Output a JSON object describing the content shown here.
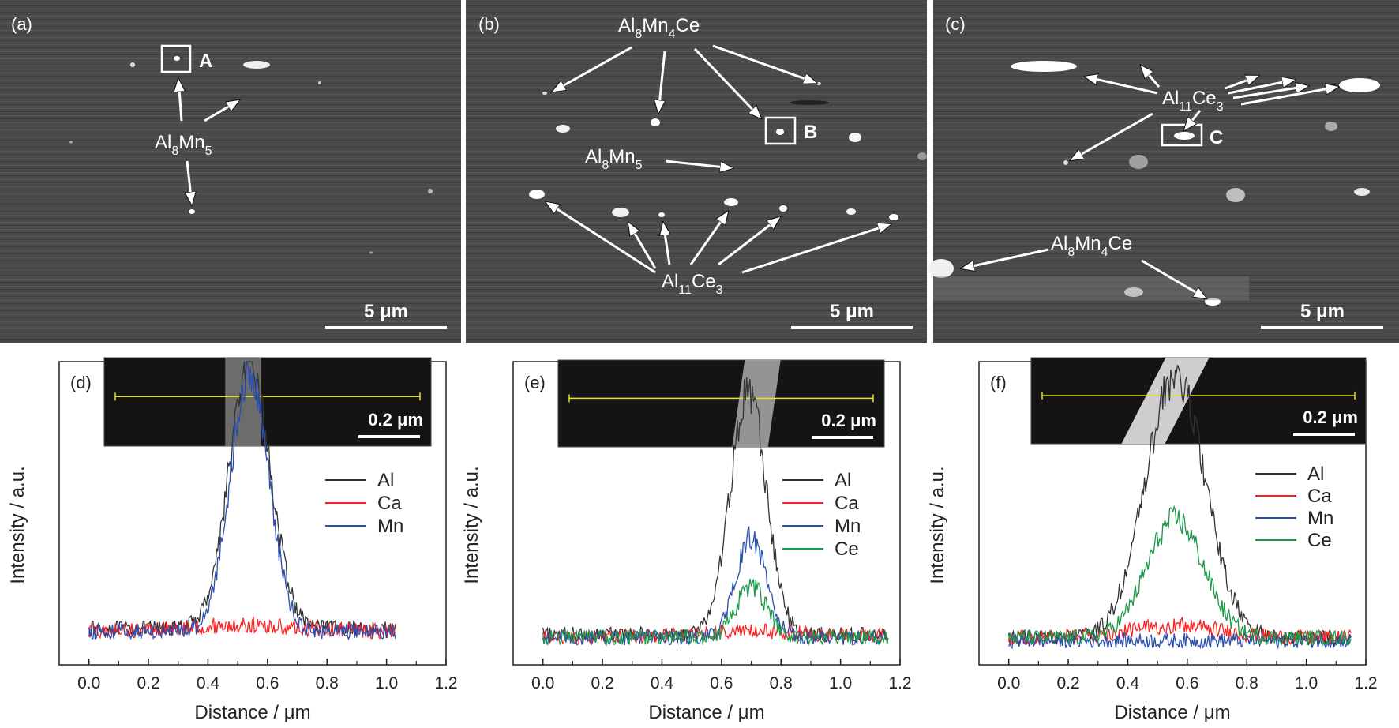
{
  "sem_panels": [
    {
      "tag": "(a)",
      "scale_label": "5 μm",
      "box_label": "A",
      "phase_labels": [
        {
          "main": "Al",
          "s1": "8",
          "mid": "Mn",
          "s2": "5",
          "tail": ""
        }
      ]
    },
    {
      "tag": "(b)",
      "scale_label": "5 μm",
      "box_label": "B",
      "phase_labels": [
        {
          "main": "Al",
          "s1": "8",
          "mid": "Mn",
          "s2": "4",
          "tail": "Ce"
        },
        {
          "main": "Al",
          "s1": "8",
          "mid": "Mn",
          "s2": "5",
          "tail": ""
        },
        {
          "main": "Al",
          "s1": "11",
          "mid": "Ce",
          "s2": "3",
          "tail": ""
        }
      ]
    },
    {
      "tag": "(c)",
      "scale_label": "5 μm",
      "box_label": "C",
      "phase_labels": [
        {
          "main": "Al",
          "s1": "11",
          "mid": "Ce",
          "s2": "3",
          "tail": ""
        },
        {
          "main": "Al",
          "s1": "8",
          "mid": "Mn",
          "s2": "4",
          "tail": "Ce"
        }
      ]
    }
  ],
  "chart_data": [
    {
      "type": "line",
      "tag": "(d)",
      "xlabel": "Distance / μm",
      "ylabel": "Intensity / a.u.",
      "xlim": [
        -0.1,
        1.2
      ],
      "x_ticks": [
        "0.0",
        "0.2",
        "0.4",
        "0.6",
        "0.8",
        "1.0",
        "1.2"
      ],
      "x_range": [
        0.0,
        1.03
      ],
      "inset_scale": "0.2 μm",
      "legend": "top-right",
      "series": [
        {
          "name": "Al",
          "color": "#333333",
          "baseline": 0.12,
          "peak": 0.98,
          "peak_x": 0.54,
          "width": 0.07
        },
        {
          "name": "Ca",
          "color": "#ff2020",
          "baseline": 0.11,
          "peak": 0.13,
          "peak_x": 0.5,
          "width": 0.2
        },
        {
          "name": "Mn",
          "color": "#2b4fb0",
          "baseline": 0.11,
          "peak": 0.96,
          "peak_x": 0.54,
          "width": 0.065
        }
      ]
    },
    {
      "type": "line",
      "tag": "(e)",
      "xlabel": "Distance / μm",
      "ylabel": "Intensity / a.u.",
      "xlim": [
        -0.1,
        1.2
      ],
      "x_ticks": [
        "0.0",
        "0.2",
        "0.4",
        "0.6",
        "0.8",
        "1.0",
        "1.2"
      ],
      "x_range": [
        0.0,
        1.16
      ],
      "inset_scale": "0.2 μm",
      "legend": "top-right",
      "series": [
        {
          "name": "Al",
          "color": "#333333",
          "baseline": 0.1,
          "peak": 0.9,
          "peak_x": 0.69,
          "width": 0.06
        },
        {
          "name": "Ca",
          "color": "#ff2020",
          "baseline": 0.09,
          "peak": 0.11,
          "peak_x": 0.7,
          "width": 0.2
        },
        {
          "name": "Mn",
          "color": "#2b4fb0",
          "baseline": 0.09,
          "peak": 0.42,
          "peak_x": 0.7,
          "width": 0.05
        },
        {
          "name": "Ce",
          "color": "#1a9a4a",
          "baseline": 0.09,
          "peak": 0.26,
          "peak_x": 0.7,
          "width": 0.05
        }
      ]
    },
    {
      "type": "line",
      "tag": "(f)",
      "xlabel": "Distance / μm",
      "ylabel": "Intensity / a.u.",
      "xlim": [
        -0.1,
        1.2
      ],
      "x_ticks": [
        "0.0",
        "0.2",
        "0.4",
        "0.6",
        "0.8",
        "1.0",
        "1.2"
      ],
      "x_range": [
        0.0,
        1.15
      ],
      "inset_scale": "0.2 μm",
      "legend": "top-right",
      "series": [
        {
          "name": "Al",
          "color": "#333333",
          "baseline": 0.09,
          "peak": 0.95,
          "peak_x": 0.56,
          "width": 0.1
        },
        {
          "name": "Ca",
          "color": "#ff2020",
          "baseline": 0.09,
          "peak": 0.13,
          "peak_x": 0.56,
          "width": 0.15
        },
        {
          "name": "Mn",
          "color": "#2b4fb0",
          "baseline": 0.08,
          "peak": 0.08,
          "peak_x": 0.56,
          "width": 0.15
        },
        {
          "name": "Ce",
          "color": "#1a9a4a",
          "baseline": 0.09,
          "peak": 0.48,
          "peak_x": 0.56,
          "width": 0.095
        }
      ]
    }
  ]
}
